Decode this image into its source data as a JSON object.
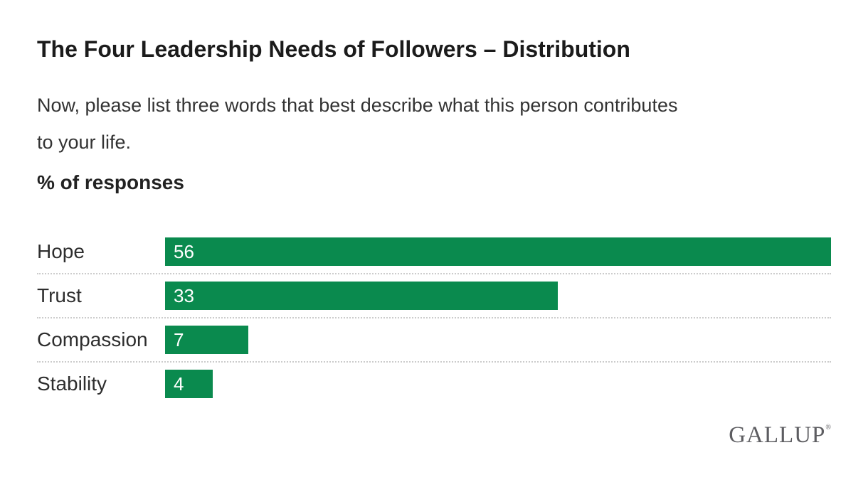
{
  "title": "The Four Leadership Needs of Followers – Distribution",
  "subtitle": "Now, please list three words that best describe what this person contributes to your life.",
  "subtitle_lines": [
    "Now, please list three words that best describe what this person contributes",
    "to your life."
  ],
  "axis_label": "% of responses",
  "logo": {
    "text": "GALLUP",
    "registered_mark": "®"
  },
  "colors": {
    "bar": "#0a8a4e",
    "title_text": "#1b1b1b",
    "body_text": "#333333",
    "value_text": "#ffffff",
    "separator": "#cccccc",
    "logo_text": "#5d5d61",
    "background": "#ffffff"
  },
  "chart_data": {
    "type": "bar",
    "orientation": "horizontal",
    "title": "The Four Leadership Needs of Followers – Distribution",
    "subtitle": "Now, please list three words that best describe what this person contributes to your life.",
    "unit_label": "% of responses",
    "categories": [
      "Hope",
      "Trust",
      "Compassion",
      "Stability"
    ],
    "values": [
      56,
      33,
      7,
      4
    ],
    "value_labels": [
      "56",
      "33",
      "7",
      "4"
    ],
    "xlabel": "",
    "ylabel": "",
    "xlim": [
      0,
      56
    ],
    "grid": false,
    "legend": false,
    "bar_color": "#0a8a4e",
    "value_label_position": "inside-start",
    "row_separators": "dotted"
  }
}
